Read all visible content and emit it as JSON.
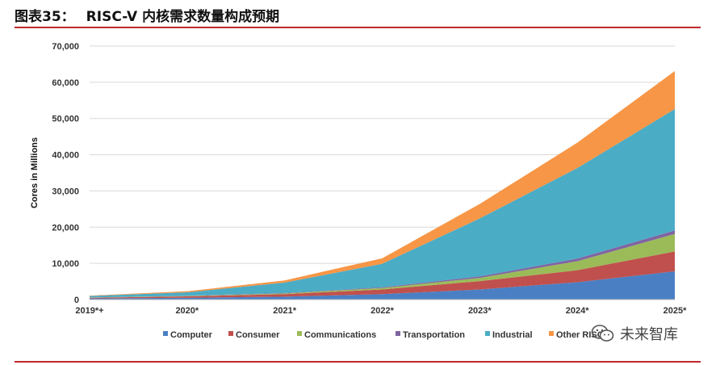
{
  "header": {
    "figure_number": "图表35：",
    "title": "RISC-V 内核需求数量构成预期"
  },
  "watermark": {
    "text": "未来智库",
    "icon": "wechat-icon"
  },
  "chart_data": {
    "type": "area",
    "stacked": true,
    "title": "",
    "xlabel": "",
    "ylabel": "Cores in Millions",
    "categories": [
      "2019*+",
      "2020*",
      "2021*",
      "2022*",
      "2023*",
      "2024*",
      "2025*"
    ],
    "ylim": [
      0,
      70000
    ],
    "yticks": [
      0,
      10000,
      20000,
      30000,
      40000,
      50000,
      60000,
      70000
    ],
    "ytick_labels": [
      "0",
      "10,000",
      "20,000",
      "30,000",
      "40,000",
      "50,000",
      "60,000",
      "70,000"
    ],
    "grid": true,
    "legend_position": "bottom",
    "series": [
      {
        "name": "Computer",
        "color": "#4a7fc4",
        "values": [
          300,
          500,
          800,
          1500,
          2800,
          4800,
          7800
        ]
      },
      {
        "name": "Consumer",
        "color": "#c0504d",
        "values": [
          200,
          400,
          700,
          1300,
          2300,
          3300,
          5500
        ]
      },
      {
        "name": "Communications",
        "color": "#9bbb59",
        "values": [
          50,
          100,
          200,
          400,
          900,
          2500,
          4800
        ]
      },
      {
        "name": "Transportation",
        "color": "#8064a2",
        "values": [
          30,
          60,
          100,
          200,
          400,
          700,
          1000
        ]
      },
      {
        "name": "Industrial",
        "color": "#4bacc6",
        "values": [
          420,
          940,
          2900,
          6500,
          16000,
          25000,
          33500
        ]
      },
      {
        "name": "Other RISC-V",
        "color": "#f79646",
        "values": [
          100,
          300,
          600,
          1500,
          4000,
          7000,
          10500
        ]
      }
    ]
  }
}
